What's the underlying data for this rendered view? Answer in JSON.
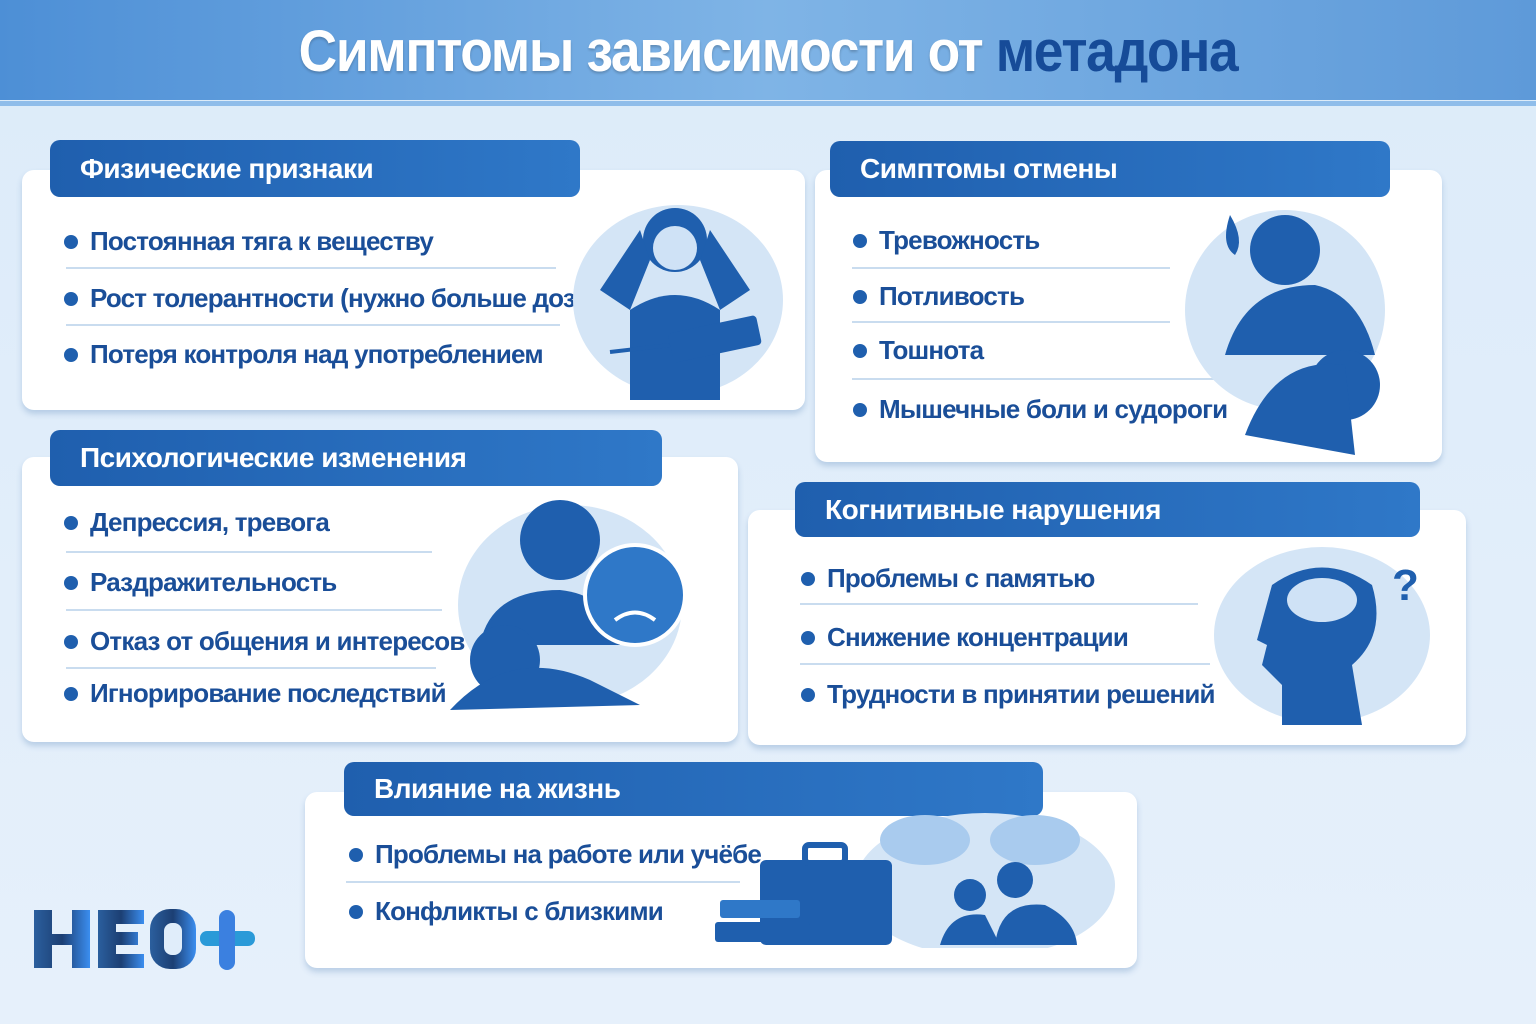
{
  "header": {
    "title_main": "Симптомы зависимости от",
    "title_accent": "метадона"
  },
  "colors": {
    "primary": "#1f5fae",
    "text": "#1a4e98",
    "accent": "#164b98",
    "background": "#dcebf9"
  },
  "sections": {
    "physical": {
      "title": "Физические признаки",
      "items": [
        "Постоянная тяга к веществу",
        "Рост толерантности (нужно больше дозы)",
        "Потеря контроля над употреблением"
      ],
      "icon": "person-holding-head-syringe-icon"
    },
    "withdrawal": {
      "title": "Симптомы отмены",
      "items": [
        "Тревожность",
        "Потливость",
        "Тошнота",
        "Мышечные боли и судороги"
      ],
      "icon": "sweating-nauseous-person-icon"
    },
    "psychological": {
      "title": "Психологические изменения",
      "items": [
        "Депрессия, тревога",
        "Раздражительность",
        "Отказ от общения и интересов",
        "Игнорирование последствий"
      ],
      "icon": "sad-angry-faces-icon"
    },
    "cognitive": {
      "title": "Когнитивные нарушения",
      "items": [
        "Проблемы с памятью",
        "Снижение концентрации",
        "Трудности в принятии решений"
      ],
      "icon": "confused-head-brain-icon"
    },
    "life": {
      "title": "Влияние на жизнь",
      "items": [
        "Проблемы на работе или учёбе",
        "Конфликты с близкими"
      ],
      "icon": "briefcase-books-arguing-people-icon"
    }
  },
  "logo": {
    "text": "НЕО+"
  }
}
